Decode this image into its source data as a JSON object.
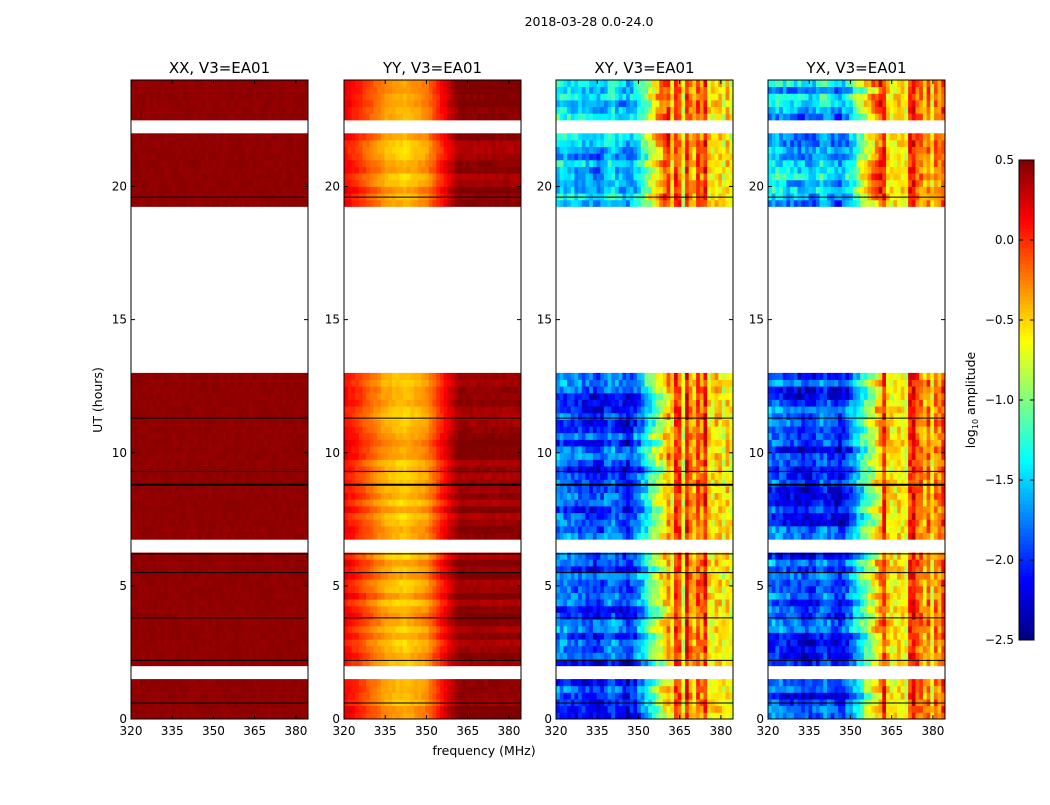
{
  "chart_data": {
    "type": "heatmap",
    "title": "2018-03-28 0.0-24.0",
    "xlabel": "frequency (MHz)",
    "ylabel": "UT (hours)",
    "xlim": [
      320,
      384.4
    ],
    "ylim": [
      0,
      24
    ],
    "xticks": [
      320,
      335,
      350,
      365,
      380
    ],
    "yticks": [
      0,
      5,
      10,
      15,
      20
    ],
    "panels": [
      {
        "title": "XX, V3=EA01",
        "model": "flat",
        "level": 0.45,
        "freq_profile": {
          "f": [
            320,
            384.4
          ],
          "v": [
            0.45,
            0.45
          ]
        }
      },
      {
        "title": "YY, V3=EA01",
        "model": "profile",
        "freq_profile": {
          "f": [
            320,
            325,
            335,
            342,
            350,
            356,
            359,
            362,
            384.4
          ],
          "v": [
            0.15,
            0.0,
            -0.35,
            -0.45,
            -0.3,
            0.1,
            0.3,
            0.45,
            0.45
          ]
        }
      },
      {
        "title": "XY, V3=EA01",
        "model": "cross",
        "freq_profile": {
          "f": [
            320,
            336,
            340,
            346,
            350,
            362,
            384.4
          ],
          "v": [
            -1.8,
            -2.1,
            -1.8,
            -2.15,
            -1.8,
            -0.3,
            -0.3
          ]
        }
      },
      {
        "title": "YX, V3=EA01",
        "model": "cross",
        "freq_profile": {
          "f": [
            320,
            336,
            340,
            346,
            350,
            362,
            384.4
          ],
          "v": [
            -1.8,
            -2.1,
            -1.8,
            -2.15,
            -1.8,
            -0.3,
            -0.3
          ]
        }
      }
    ],
    "data_gaps_hours": [
      [
        1.42,
        1.9
      ],
      [
        6.25,
        6.7
      ],
      [
        13.07,
        19.36
      ],
      [
        21.9,
        22.5
      ]
    ],
    "flagged_rows_hours": [
      0.6,
      2.2,
      3.8,
      5.5,
      6.2,
      8.8,
      9.3,
      11.3,
      19.6
    ],
    "colorbar": {
      "label_prefix": "log",
      "label_sub": "10",
      "label_suffix": " amplitude",
      "vmin": -2.5,
      "vmax": 0.5,
      "ticks": [
        0.5,
        0.0,
        -0.5,
        -1.0,
        -1.5,
        -2.0,
        -2.5
      ],
      "tick_labels": [
        "0.5",
        "0.0",
        "−0.5",
        "−1.0",
        "−1.5",
        "−2.0",
        "−2.5"
      ],
      "colormap": "jet"
    }
  }
}
